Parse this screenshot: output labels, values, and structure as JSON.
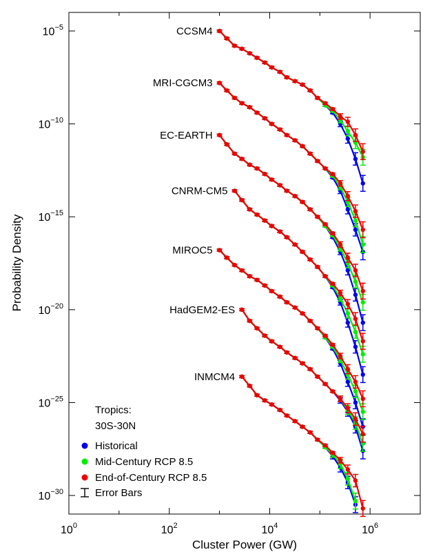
{
  "chart_data": {
    "type": "line",
    "xlabel": "Cluster Power (GW)",
    "ylabel": "Probability Density",
    "x_scale": "log",
    "y_scale": "log",
    "xlim": [
      1,
      10000000
    ],
    "ylim": [
      1e-31,
      0.0001
    ],
    "x_ticks": [
      {
        "value": 1,
        "base": "10",
        "exp": "0"
      },
      {
        "value": 100,
        "base": "10",
        "exp": "2"
      },
      {
        "value": 10000,
        "base": "10",
        "exp": "4"
      },
      {
        "value": 1000000,
        "base": "10",
        "exp": "6"
      }
    ],
    "y_ticks": [
      {
        "value": 1e-05,
        "base": "10",
        "exp": "−5"
      },
      {
        "value": 1e-10,
        "base": "10",
        "exp": "−10"
      },
      {
        "value": 1e-15,
        "base": "10",
        "exp": "−15"
      },
      {
        "value": 1e-20,
        "base": "10",
        "exp": "−20"
      },
      {
        "value": 1e-25,
        "base": "10",
        "exp": "−25"
      },
      {
        "value": 1e-30,
        "base": "10",
        "exp": "−30"
      }
    ],
    "annotation": {
      "line1": "Tropics:",
      "line2": "30S-30N"
    },
    "legend": [
      {
        "name": "Historical",
        "color": "#0000ee",
        "marker": "dot"
      },
      {
        "name": "Mid-Century RCP 8.5",
        "color": "#00ee00",
        "marker": "dot"
      },
      {
        "name": "End-of-Century RCP 8.5",
        "color": "#ee0000",
        "marker": "dot"
      },
      {
        "name": "Error Bars",
        "color": "#000000",
        "marker": "errorbar"
      }
    ],
    "legend_position": "bottom-left",
    "grid": false,
    "colors": {
      "historical": "#0000ee",
      "mid": "#00ee00",
      "end": "#ee0000"
    },
    "x_base": [
      1000,
      1400,
      2000,
      2800,
      4000,
      5600,
      8000,
      11000,
      16000,
      22000,
      32000,
      45000,
      64000,
      90000,
      128000,
      180000,
      256000,
      360000,
      512000,
      720000
    ],
    "groups": [
      {
        "model": "CCSM4",
        "start_index": 0,
        "historical": [
          1e-05,
          4e-06,
          1.6e-06,
          1.1e-06,
          6.3e-07,
          3.6e-07,
          2e-07,
          1.1e-07,
          6.3e-08,
          3.2e-08,
          2e-08,
          1.3e-08,
          6.3e-09,
          2.5e-09,
          1e-09,
          4e-10,
          1e-10,
          1.6e-11,
          1.3e-12,
          6.3e-14
        ],
        "mid": [
          1e-05,
          4e-06,
          1.6e-06,
          1.1e-06,
          6.3e-07,
          3.6e-07,
          2e-07,
          1.1e-07,
          6.3e-08,
          3.2e-08,
          2e-08,
          1.3e-08,
          6.3e-09,
          2.5e-09,
          1e-09,
          5e-10,
          1.6e-10,
          4e-11,
          1e-11,
          1.6e-12
        ],
        "end": [
          1e-05,
          4e-06,
          1.6e-06,
          1.1e-06,
          6.3e-07,
          3.6e-07,
          2e-07,
          1.1e-07,
          6.3e-08,
          3.2e-08,
          2e-08,
          1.3e-08,
          6.3e-09,
          2.5e-09,
          1.3e-09,
          6.3e-10,
          2.5e-10,
          1.3e-10,
          2.5e-11,
          3.2e-12
        ]
      },
      {
        "model": "MRI-CGCM3",
        "start_index": 0,
        "historical": [
          1.6e-08,
          6.3e-09,
          2.5e-09,
          1.3e-09,
          7.9e-10,
          4e-10,
          2e-10,
          1e-10,
          5e-11,
          2.5e-11,
          1.3e-11,
          6.3e-12,
          2.5e-12,
          1e-12,
          4e-13,
          1.3e-13,
          2.5e-14,
          2.5e-15,
          2e-16,
          1.3e-17
        ],
        "mid": [
          1.6e-08,
          6.3e-09,
          2.5e-09,
          1.3e-09,
          7.9e-10,
          4e-10,
          2e-10,
          1e-10,
          5e-11,
          2.5e-11,
          1.3e-11,
          6.3e-12,
          2.5e-12,
          1e-12,
          4e-13,
          1.6e-13,
          4e-14,
          6.3e-15,
          6.3e-16,
          3.2e-17
        ],
        "end": [
          1.6e-08,
          6.3e-09,
          2.5e-09,
          1.3e-09,
          7.9e-10,
          4e-10,
          2e-10,
          1e-10,
          5e-11,
          2.5e-11,
          1.3e-11,
          6.3e-12,
          2.5e-12,
          1e-12,
          4e-13,
          2e-13,
          6.3e-14,
          1.3e-14,
          2e-15,
          2e-16
        ]
      },
      {
        "model": "EC-EARTH",
        "start_index": 0,
        "historical": [
          2.5e-11,
          7.9e-12,
          2.5e-12,
          1.3e-12,
          6.3e-13,
          4e-13,
          2e-13,
          1e-13,
          5e-14,
          2.5e-14,
          1.3e-14,
          6.3e-15,
          2.5e-15,
          1e-15,
          3.2e-16,
          7.9e-17,
          1.3e-17,
          1.3e-18,
          6.3e-20,
          2e-21
        ],
        "mid": [
          2.5e-11,
          7.9e-12,
          2.5e-12,
          1.3e-12,
          6.3e-13,
          4e-13,
          2e-13,
          1e-13,
          5e-14,
          2.5e-14,
          1.3e-14,
          6.3e-15,
          2.5e-15,
          1e-15,
          3.2e-16,
          1e-16,
          2e-17,
          3.2e-18,
          3.2e-19,
          2.5e-20
        ],
        "end": [
          2.5e-11,
          7.9e-12,
          2.5e-12,
          1.3e-12,
          6.3e-13,
          4e-13,
          2e-13,
          1e-13,
          5e-14,
          2.5e-14,
          1.3e-14,
          6.3e-15,
          2.5e-15,
          1e-15,
          4e-16,
          1.3e-16,
          3.2e-17,
          6.3e-18,
          1.3e-18,
          1e-19
        ]
      },
      {
        "model": "CNRM-CM5",
        "start_index": 2,
        "historical": [
          2.5e-14,
          7.9e-15,
          2.5e-15,
          1.3e-15,
          6.3e-16,
          3.2e-16,
          1.6e-16,
          7.9e-17,
          3.2e-17,
          1.3e-17,
          5e-18,
          2e-18,
          6.3e-19,
          1.6e-19,
          2.5e-20,
          2e-21,
          1e-22,
          3.2e-24
        ],
        "mid": [
          2.5e-14,
          7.9e-15,
          2.5e-15,
          1.3e-15,
          6.3e-16,
          3.2e-16,
          1.6e-16,
          7.9e-17,
          3.2e-17,
          1.3e-17,
          5e-18,
          2e-18,
          6.3e-19,
          2e-19,
          4e-20,
          6.3e-21,
          6.3e-22,
          4e-23
        ],
        "end": [
          2.5e-14,
          7.9e-15,
          2.5e-15,
          1.3e-15,
          6.3e-16,
          3.2e-16,
          1.6e-16,
          7.9e-17,
          3.2e-17,
          1.3e-17,
          5e-18,
          2e-18,
          6.3e-19,
          2.5e-19,
          7.9e-20,
          2e-20,
          3.2e-21,
          2e-22
        ]
      },
      {
        "model": "MIROC5",
        "start_index": 0,
        "historical": [
          1.6e-17,
          6.3e-18,
          2.5e-18,
          1.3e-18,
          6.3e-19,
          4e-19,
          2e-19,
          1e-19,
          5e-20,
          2.5e-20,
          1.3e-20,
          6.3e-21,
          2.5e-21,
          1e-21,
          3.2e-22,
          7.9e-23,
          1.3e-23,
          1.3e-24,
          1e-25,
          5e-27
        ],
        "mid": [
          1.6e-17,
          6.3e-18,
          2.5e-18,
          1.3e-18,
          6.3e-19,
          4e-19,
          2e-19,
          1e-19,
          5e-20,
          2.5e-20,
          1.3e-20,
          6.3e-21,
          2.5e-21,
          1e-21,
          3.2e-22,
          1e-22,
          2e-23,
          3.2e-24,
          4e-25,
          3.2e-26
        ],
        "end": [
          1.6e-17,
          6.3e-18,
          2.5e-18,
          1.3e-18,
          6.3e-19,
          4e-19,
          2e-19,
          1e-19,
          5e-20,
          2.5e-20,
          1.3e-20,
          6.3e-21,
          2.5e-21,
          1e-21,
          4e-22,
          1.3e-22,
          3.2e-23,
          6.3e-24,
          1.3e-24,
          1.6e-25
        ]
      },
      {
        "model": "HadGEM2-ES",
        "start_index": 3,
        "historical": [
          1e-20,
          2.5e-21,
          1e-21,
          4e-22,
          2e-22,
          1e-22,
          5e-23,
          2.5e-23,
          1.3e-23,
          6.3e-24,
          2.5e-24,
          1e-24,
          4e-25,
          1.3e-25,
          3.2e-26,
          5e-27,
          2.5e-28
        ],
        "mid": [
          1e-20,
          2.5e-21,
          1e-21,
          4e-22,
          2e-22,
          1e-22,
          5e-23,
          2.5e-23,
          1.3e-23,
          6.3e-24,
          2.5e-24,
          1e-24,
          4e-25,
          1.6e-25,
          4e-26,
          7.9e-27,
          6.3e-28
        ],
        "end": [
          1e-20,
          2.5e-21,
          1e-21,
          4e-22,
          2e-22,
          1e-22,
          5e-23,
          2.5e-23,
          1.3e-23,
          6.3e-24,
          2.5e-24,
          1e-24,
          4e-25,
          1.6e-25,
          5e-26,
          1.3e-26,
          2e-27
        ]
      },
      {
        "model": "INMCM4",
        "start_index": 3,
        "historical": [
          2.5e-24,
          7.9e-25,
          2.5e-25,
          1.3e-25,
          7.9e-26,
          4e-26,
          2e-26,
          1e-26,
          5e-27,
          2.5e-27,
          1e-27,
          4e-28,
          1.3e-28,
          3.2e-29,
          5e-30,
          3.2e-31
        ],
        "mid": [
          2.5e-24,
          7.9e-25,
          2.5e-25,
          1.3e-25,
          7.9e-26,
          4e-26,
          2e-26,
          1e-26,
          5e-27,
          2.5e-27,
          1e-27,
          4e-28,
          1.6e-28,
          5e-29,
          7.9e-30,
          5e-31
        ],
        "end": [
          2.5e-24,
          7.9e-25,
          2.5e-25,
          1.3e-25,
          7.9e-26,
          4e-26,
          2e-26,
          1e-26,
          5e-27,
          2.5e-27,
          1e-27,
          5e-28,
          2e-28,
          7.9e-29,
          2.5e-29,
          6.3e-30,
          2e-31
        ]
      }
    ]
  }
}
